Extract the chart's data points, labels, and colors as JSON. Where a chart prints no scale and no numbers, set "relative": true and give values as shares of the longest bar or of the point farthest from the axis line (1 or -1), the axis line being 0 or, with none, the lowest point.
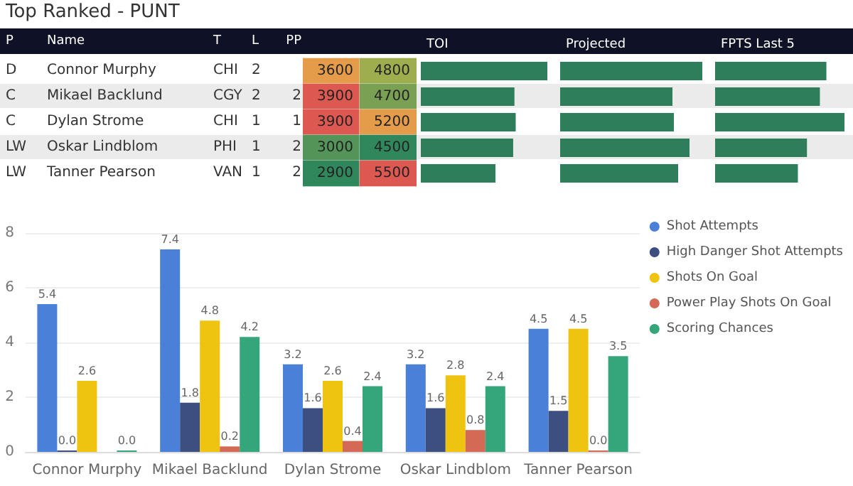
{
  "chart_data": [
    {
      "type": "other",
      "title": "Top Ranked - PUNT",
      "categories": [
        "P",
        "Name",
        "T",
        "L",
        "PP"
      ],
      "y_categories": [
        "Connor Murphy",
        "Mikael Backlund",
        "Dylan Strome",
        "Oskar Lindblom",
        "Tanner Pearson"
      ],
      "annotations": [
        {
          "text": "D",
          "x": "P",
          "y": "Connor Murphy"
        },
        {
          "text": "CHI",
          "x": "T",
          "y": "Connor Murphy"
        },
        {
          "text": "2",
          "x": "L",
          "y": "Connor Murphy"
        },
        {
          "text": "C",
          "x": "P",
          "y": "Mikael Backlund"
        },
        {
          "text": "CGY",
          "x": "T",
          "y": "Mikael Backlund"
        },
        {
          "text": "2",
          "x": "L",
          "y": "Mikael Backlund"
        },
        {
          "text": "2",
          "x": "PP",
          "y": "Mikael Backlund"
        },
        {
          "text": "C",
          "x": "P",
          "y": "Dylan Strome"
        },
        {
          "text": "CHI",
          "x": "T",
          "y": "Dylan Strome"
        },
        {
          "text": "1",
          "x": "L",
          "y": "Dylan Strome"
        },
        {
          "text": "1",
          "x": "PP",
          "y": "Dylan Strome"
        },
        {
          "text": "LW",
          "x": "P",
          "y": "Oskar Lindblom"
        },
        {
          "text": "PHI",
          "x": "T",
          "y": "Oskar Lindblom"
        },
        {
          "text": "1",
          "x": "L",
          "y": "Oskar Lindblom"
        },
        {
          "text": "2",
          "x": "PP",
          "y": "Oskar Lindblom"
        },
        {
          "text": "LW",
          "x": "P",
          "y": "Tanner Pearson"
        },
        {
          "text": "VAN",
          "x": "T",
          "y": "Tanner Pearson"
        },
        {
          "text": "1",
          "x": "L",
          "y": "Tanner Pearson"
        },
        {
          "text": "2",
          "x": "PP",
          "y": "Tanner Pearson"
        }
      ]
    },
    {
      "type": "heatmap",
      "categories": [
        null,
        null
      ],
      "y_categories": [
        null,
        null,
        null,
        null,
        null
      ],
      "cells": [
        [
          3600,
          4800
        ],
        [
          3900,
          4700
        ],
        [
          3900,
          5200
        ],
        [
          3000,
          4500
        ],
        [
          2900,
          5500
        ]
      ],
      "data_labels": true
    },
    {
      "type": "bar",
      "orientation": "horizontal",
      "relative": true,
      "title": "TOI",
      "categories": [
        null,
        null,
        null,
        null,
        null
      ],
      "color": "#2e7d5b",
      "values": [
        1,
        0.74,
        0.75,
        0.73,
        0.59
      ]
    },
    {
      "type": "bar",
      "orientation": "horizontal",
      "relative": true,
      "title": "Projected",
      "categories": [
        null,
        null,
        null,
        null,
        null
      ],
      "color": "#2e7d5b",
      "values": [
        1,
        0.79,
        0.8,
        0.91,
        0.83
      ]
    },
    {
      "type": "bar",
      "orientation": "horizontal",
      "relative": true,
      "title": "FPTS Last 5",
      "categories": [
        null,
        null,
        null,
        null,
        null
      ],
      "color": "#2e7d5b",
      "values": [
        0.86,
        0.81,
        1,
        0.71,
        0.64
      ]
    },
    {
      "type": "bar",
      "categories": [
        "Connor Murphy",
        "Mikael Backlund",
        "Dylan Strome",
        "Oskar Lindblom",
        "Tanner Pearson"
      ],
      "ylim": [
        0,
        8
      ],
      "yticks": [
        0,
        2,
        4,
        6,
        8
      ],
      "grid": "y",
      "legend": "right",
      "series": [
        {
          "name": "Shot Attempts",
          "color": "#4a80d8",
          "values": [
            5.4,
            7.4,
            3.2,
            3.2,
            4.5
          ],
          "value_labels": [
            "5.4",
            "7.4",
            "3.2",
            "3.2",
            "4.5"
          ]
        },
        {
          "name": "High Danger Shot Attempts",
          "color": "#3c4f80",
          "values": [
            0,
            1.8,
            1.6,
            1.6,
            1.5
          ],
          "value_labels": [
            "0.0",
            "1.8",
            "1.6",
            "1.6",
            "1.5"
          ]
        },
        {
          "name": "Shots On Goal",
          "color": "#efc410",
          "values": [
            2.6,
            4.8,
            2.6,
            2.8,
            4.5
          ],
          "value_labels": [
            "2.6",
            "4.8",
            "2.6",
            "2.8",
            "4.5"
          ]
        },
        {
          "name": "Power Play Shots On Goal",
          "color": "#d46a55",
          "values": [
            null,
            0.2,
            0.4,
            0.8,
            0
          ],
          "value_labels": [
            null,
            "0.2",
            "0.4",
            "0.8",
            "0.0"
          ]
        },
        {
          "name": "Scoring Chances",
          "color": "#35a57c",
          "values": [
            0,
            4.2,
            2.4,
            2.4,
            3.5
          ],
          "value_labels": [
            "0.0",
            "4.2",
            "2.4",
            "2.4",
            "3.5"
          ]
        }
      ]
    }
  ]
}
